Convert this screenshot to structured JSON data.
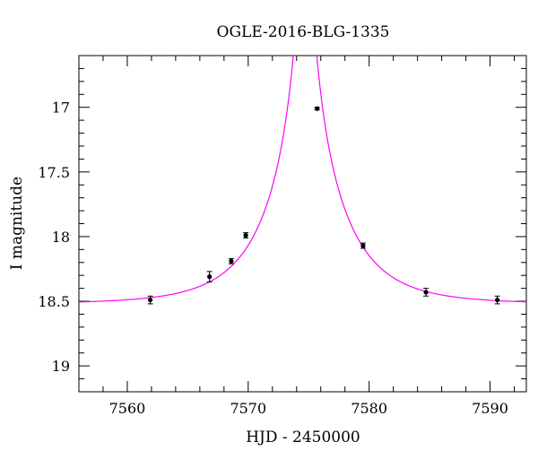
{
  "chart_data": {
    "type": "scatter",
    "title": "OGLE-2016-BLG-1335",
    "xlabel": "HJD - 2450000",
    "ylabel": "I magnitude",
    "xlim": [
      7556,
      7593
    ],
    "ylim": [
      19.2,
      16.6
    ],
    "y_inverted": true,
    "grid": false,
    "x_ticks": [
      7560,
      7570,
      7580,
      7590
    ],
    "x_tick_labels": [
      "7560",
      "7570",
      "7580",
      "7590"
    ],
    "y_ticks": [
      17,
      17.5,
      18,
      18.5,
      19
    ],
    "y_tick_labels": [
      "17",
      "17.5",
      "18",
      "18.5",
      "19"
    ],
    "colors": {
      "model": "#ff00ff",
      "points": "#000000"
    },
    "series": [
      {
        "kind": "points",
        "x": [
          7561.9,
          7566.8,
          7568.6,
          7569.8,
          7575.7,
          7579.5,
          7584.7,
          7590.6
        ],
        "y": [
          18.49,
          18.31,
          18.19,
          17.99,
          17.01,
          18.07,
          18.43,
          18.49
        ],
        "yerr": [
          0.03,
          0.04,
          0.02,
          0.02,
          0.01,
          0.02,
          0.03,
          0.03
        ]
      },
      {
        "kind": "model",
        "model": {
          "t0": 7574.7,
          "u0": 0.04,
          "tE": 5.8,
          "baseline": 18.52,
          "fs": 1.0
        }
      }
    ]
  }
}
